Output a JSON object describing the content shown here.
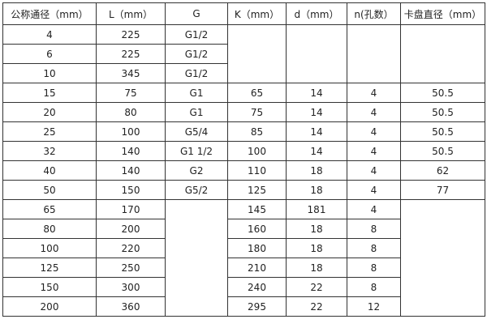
{
  "headers": [
    "公称通径（mm）",
    "L（mm）",
    "G",
    "K（mm）",
    "d（mm）",
    "n(孔数）",
    "卡盘直径（mm）"
  ],
  "rows": [
    [
      "4",
      "225",
      "G1/2",
      "",
      "",
      "",
      ""
    ],
    [
      "6",
      "225",
      "G1/2",
      null,
      null,
      null,
      null
    ],
    [
      "10",
      "345",
      "G1/2",
      null,
      null,
      null,
      null
    ],
    [
      "15",
      "75",
      "G1",
      "65",
      "14",
      "4",
      "50.5"
    ],
    [
      "20",
      "80",
      "G1",
      "75",
      "14",
      "4",
      "50.5"
    ],
    [
      "25",
      "100",
      "G5/4",
      "85",
      "14",
      "4",
      "50.5"
    ],
    [
      "32",
      "140",
      "G1  1/2",
      "100",
      "14",
      "4",
      "50.5"
    ],
    [
      "40",
      "140",
      "G2",
      "110",
      "18",
      "4",
      "62"
    ],
    [
      "50",
      "150",
      "G5/2",
      "125",
      "18",
      "4",
      "77"
    ],
    [
      "65",
      "170",
      "",
      "145",
      "181",
      "4",
      ""
    ],
    [
      "80",
      "200",
      null,
      "160",
      "18",
      "8",
      null
    ],
    [
      "100",
      "220",
      null,
      "180",
      "18",
      "8",
      null
    ],
    [
      "125",
      "250",
      null,
      "210",
      "18",
      "8",
      null
    ],
    [
      "150",
      "300",
      null,
      "240",
      "22",
      "8",
      null
    ],
    [
      "200",
      "360",
      null,
      "295",
      "22",
      "12",
      null
    ]
  ]
}
